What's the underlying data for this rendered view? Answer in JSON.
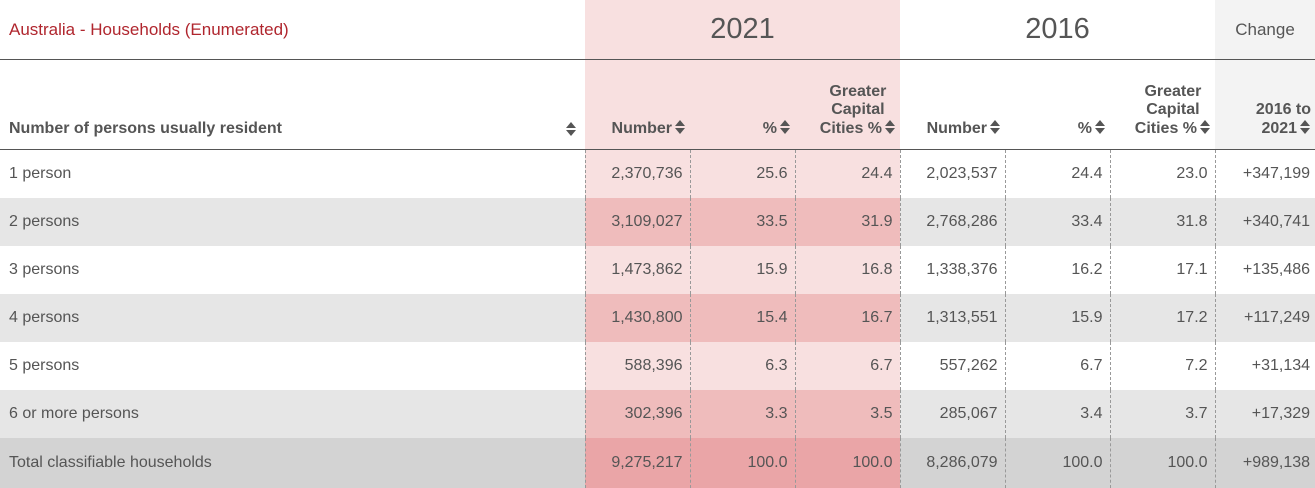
{
  "table_title": "Australia - Households (Enumerated)",
  "years": {
    "y2021": "2021",
    "y2016": "2016",
    "change": "Change"
  },
  "columns": {
    "row_label": "Number of persons usually resident",
    "number": "Number",
    "pct": "%",
    "gcc_line1": "Greater",
    "gcc_line2": "Capital",
    "gcc_line3": "Cities %",
    "change_line1": "2016 to",
    "change_line2": "2021"
  },
  "rows": [
    {
      "label": "1 person",
      "n2021": "2,370,736",
      "p2021": "25.6",
      "g2021": "24.4",
      "n2016": "2,023,537",
      "p2016": "24.4",
      "g2016": "23.0",
      "change": "+347,199"
    },
    {
      "label": "2 persons",
      "n2021": "3,109,027",
      "p2021": "33.5",
      "g2021": "31.9",
      "n2016": "2,768,286",
      "p2016": "33.4",
      "g2016": "31.8",
      "change": "+340,741"
    },
    {
      "label": "3 persons",
      "n2021": "1,473,862",
      "p2021": "15.9",
      "g2021": "16.8",
      "n2016": "1,338,376",
      "p2016": "16.2",
      "g2016": "17.1",
      "change": "+135,486"
    },
    {
      "label": "4 persons",
      "n2021": "1,430,800",
      "p2021": "15.4",
      "g2021": "16.7",
      "n2016": "1,313,551",
      "p2016": "15.9",
      "g2016": "17.2",
      "change": "+117,249"
    },
    {
      "label": "5 persons",
      "n2021": "588,396",
      "p2021": "6.3",
      "g2021": "6.7",
      "n2016": "557,262",
      "p2016": "6.7",
      "g2016": "7.2",
      "change": "+31,134"
    },
    {
      "label": "6 or more persons",
      "n2021": "302,396",
      "p2021": "3.3",
      "g2021": "3.5",
      "n2016": "285,067",
      "p2016": "3.4",
      "g2016": "3.7",
      "change": "+17,329"
    }
  ],
  "total": {
    "label": "Total classifiable households",
    "n2021": "9,275,217",
    "p2021": "100.0",
    "g2021": "100.0",
    "n2016": "8,286,079",
    "p2016": "100.0",
    "g2016": "100.0",
    "change": "+989,138"
  },
  "icons": {
    "sort": "sort-arrows-icon"
  },
  "colors": {
    "title": "#b0262e",
    "highlight_2021": "#f8e0e0",
    "highlight_2021_alt": "#efbcbc",
    "highlight_2021_total": "#eaa5a7"
  }
}
